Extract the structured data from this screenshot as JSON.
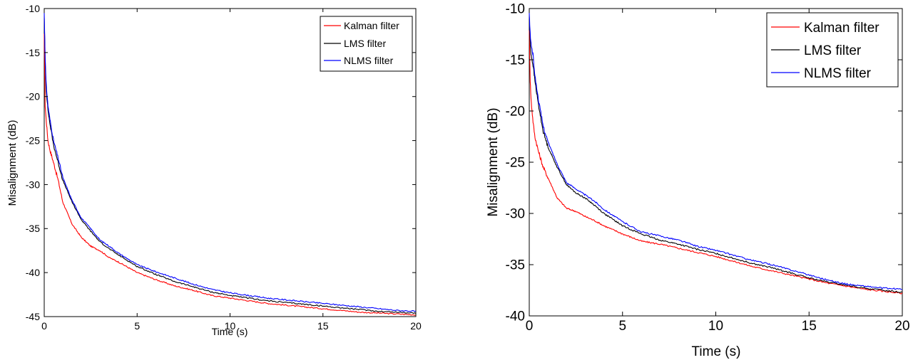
{
  "chart_data": [
    {
      "type": "line",
      "title": "",
      "xlabel": "Time (s)",
      "ylabel": "Misalignment (dB)",
      "xlim": [
        0,
        20
      ],
      "ylim": [
        -45,
        -10
      ],
      "xticks": [
        0,
        5,
        10,
        15,
        20
      ],
      "yticks": [
        -45,
        -40,
        -35,
        -30,
        -25,
        -20,
        -15,
        -10
      ],
      "grid": false,
      "legend": "top-right",
      "series": [
        {
          "name": "Kalman filter",
          "color": "#ff0000",
          "x": [
            0,
            0.05,
            0.1,
            0.2,
            0.3,
            0.5,
            0.75,
            1,
            1.5,
            2,
            2.5,
            3,
            3.5,
            4,
            5,
            6,
            7,
            8,
            9,
            10,
            11,
            12,
            13,
            14,
            15,
            16,
            17,
            18,
            19,
            20
          ],
          "y": [
            -13,
            -21,
            -22.5,
            -25,
            -26,
            -27.5,
            -29.5,
            -32,
            -34.5,
            -36,
            -37,
            -37.5,
            -38.3,
            -38.8,
            -40,
            -40.8,
            -41.5,
            -42,
            -42.6,
            -42.9,
            -43.2,
            -43.5,
            -43.7,
            -43.9,
            -44.1,
            -44.3,
            -44.5,
            -44.6,
            -44.7,
            -44.8
          ]
        },
        {
          "name": "LMS filter",
          "color": "#000000",
          "x": [
            0,
            0.05,
            0.1,
            0.2,
            0.3,
            0.5,
            0.75,
            1,
            1.5,
            2,
            2.5,
            3,
            3.5,
            4,
            5,
            6,
            7,
            8,
            9,
            10,
            11,
            12,
            13,
            14,
            15,
            16,
            17,
            18,
            19,
            20
          ],
          "y": [
            -11,
            -16,
            -19,
            -21.5,
            -23,
            -25.5,
            -27.5,
            -29.5,
            -32,
            -34,
            -35.3,
            -36.5,
            -37.3,
            -38,
            -39.3,
            -40.2,
            -41,
            -41.6,
            -42.2,
            -42.6,
            -42.9,
            -43.2,
            -43.4,
            -43.6,
            -43.8,
            -44,
            -44.2,
            -44.4,
            -44.5,
            -44.6
          ]
        },
        {
          "name": "NLMS filter",
          "color": "#0000ff",
          "x": [
            0,
            0.05,
            0.1,
            0.2,
            0.3,
            0.5,
            0.75,
            1,
            1.5,
            2,
            2.5,
            3,
            3.5,
            4,
            5,
            6,
            7,
            8,
            9,
            10,
            11,
            12,
            13,
            14,
            15,
            16,
            17,
            18,
            19,
            20
          ],
          "y": [
            -10.5,
            -15.5,
            -18.5,
            -21,
            -22.5,
            -25,
            -27,
            -29.2,
            -31.8,
            -33.8,
            -35,
            -36.3,
            -37,
            -37.8,
            -39.1,
            -39.9,
            -40.6,
            -41.3,
            -41.9,
            -42.3,
            -42.6,
            -42.9,
            -43.1,
            -43.3,
            -43.5,
            -43.7,
            -43.9,
            -44.1,
            -44.3,
            -44.4
          ]
        }
      ]
    },
    {
      "type": "line",
      "title": "",
      "xlabel": "Time (s)",
      "ylabel": "Misalignment (dB)",
      "xlim": [
        0,
        20
      ],
      "ylim": [
        -40,
        -10
      ],
      "xticks": [
        0,
        5,
        10,
        15,
        20
      ],
      "yticks": [
        -40,
        -35,
        -30,
        -25,
        -20,
        -15,
        -10
      ],
      "grid": false,
      "legend": "top-right",
      "series": [
        {
          "name": "Kalman filter",
          "color": "#ff0000",
          "x": [
            0,
            0.05,
            0.1,
            0.2,
            0.3,
            0.5,
            0.75,
            1,
            1.5,
            2,
            2.5,
            3,
            3.5,
            4,
            5,
            6,
            7,
            8,
            9,
            10,
            11,
            12,
            13,
            14,
            15,
            16,
            17,
            18,
            19,
            20
          ],
          "y": [
            -12,
            -17,
            -19,
            -21,
            -22.5,
            -24,
            -25.5,
            -26.5,
            -28.5,
            -29.5,
            -29.8,
            -30.3,
            -30.7,
            -31.2,
            -32,
            -32.7,
            -33,
            -33.4,
            -33.8,
            -34.2,
            -34.7,
            -35.2,
            -35.6,
            -36,
            -36.4,
            -36.8,
            -37.1,
            -37.4,
            -37.6,
            -37.8
          ]
        },
        {
          "name": "LMS filter",
          "color": "#000000",
          "x": [
            0,
            0.05,
            0.1,
            0.2,
            0.3,
            0.5,
            0.75,
            1,
            1.5,
            2,
            2.5,
            3,
            3.5,
            4,
            5,
            6,
            7,
            8,
            9,
            10,
            11,
            12,
            13,
            14,
            15,
            16,
            17,
            18,
            19,
            20
          ],
          "y": [
            -11,
            -13.5,
            -14.5,
            -15.5,
            -17,
            -19.5,
            -22,
            -23.5,
            -25.5,
            -27.2,
            -28,
            -28.5,
            -29.2,
            -30,
            -31.2,
            -32,
            -32.6,
            -33,
            -33.5,
            -33.9,
            -34.4,
            -34.9,
            -35.3,
            -35.8,
            -36.3,
            -36.7,
            -37,
            -37.3,
            -37.5,
            -37.7
          ]
        },
        {
          "name": "NLMS filter",
          "color": "#0000ff",
          "x": [
            0,
            0.05,
            0.1,
            0.2,
            0.3,
            0.5,
            0.75,
            1,
            1.5,
            2,
            2.5,
            3,
            3.5,
            4,
            5,
            6,
            7,
            8,
            9,
            10,
            11,
            12,
            13,
            14,
            15,
            16,
            17,
            18,
            19,
            20
          ],
          "y": [
            -10.5,
            -12.5,
            -13.5,
            -14.5,
            -16.5,
            -19,
            -21.5,
            -23,
            -25.2,
            -27,
            -27.6,
            -28.2,
            -28.8,
            -29.6,
            -30.8,
            -31.8,
            -32.2,
            -32.6,
            -33.2,
            -33.6,
            -34.1,
            -34.6,
            -35,
            -35.5,
            -36,
            -36.5,
            -36.9,
            -37.1,
            -37.3,
            -37.4
          ]
        }
      ]
    }
  ]
}
